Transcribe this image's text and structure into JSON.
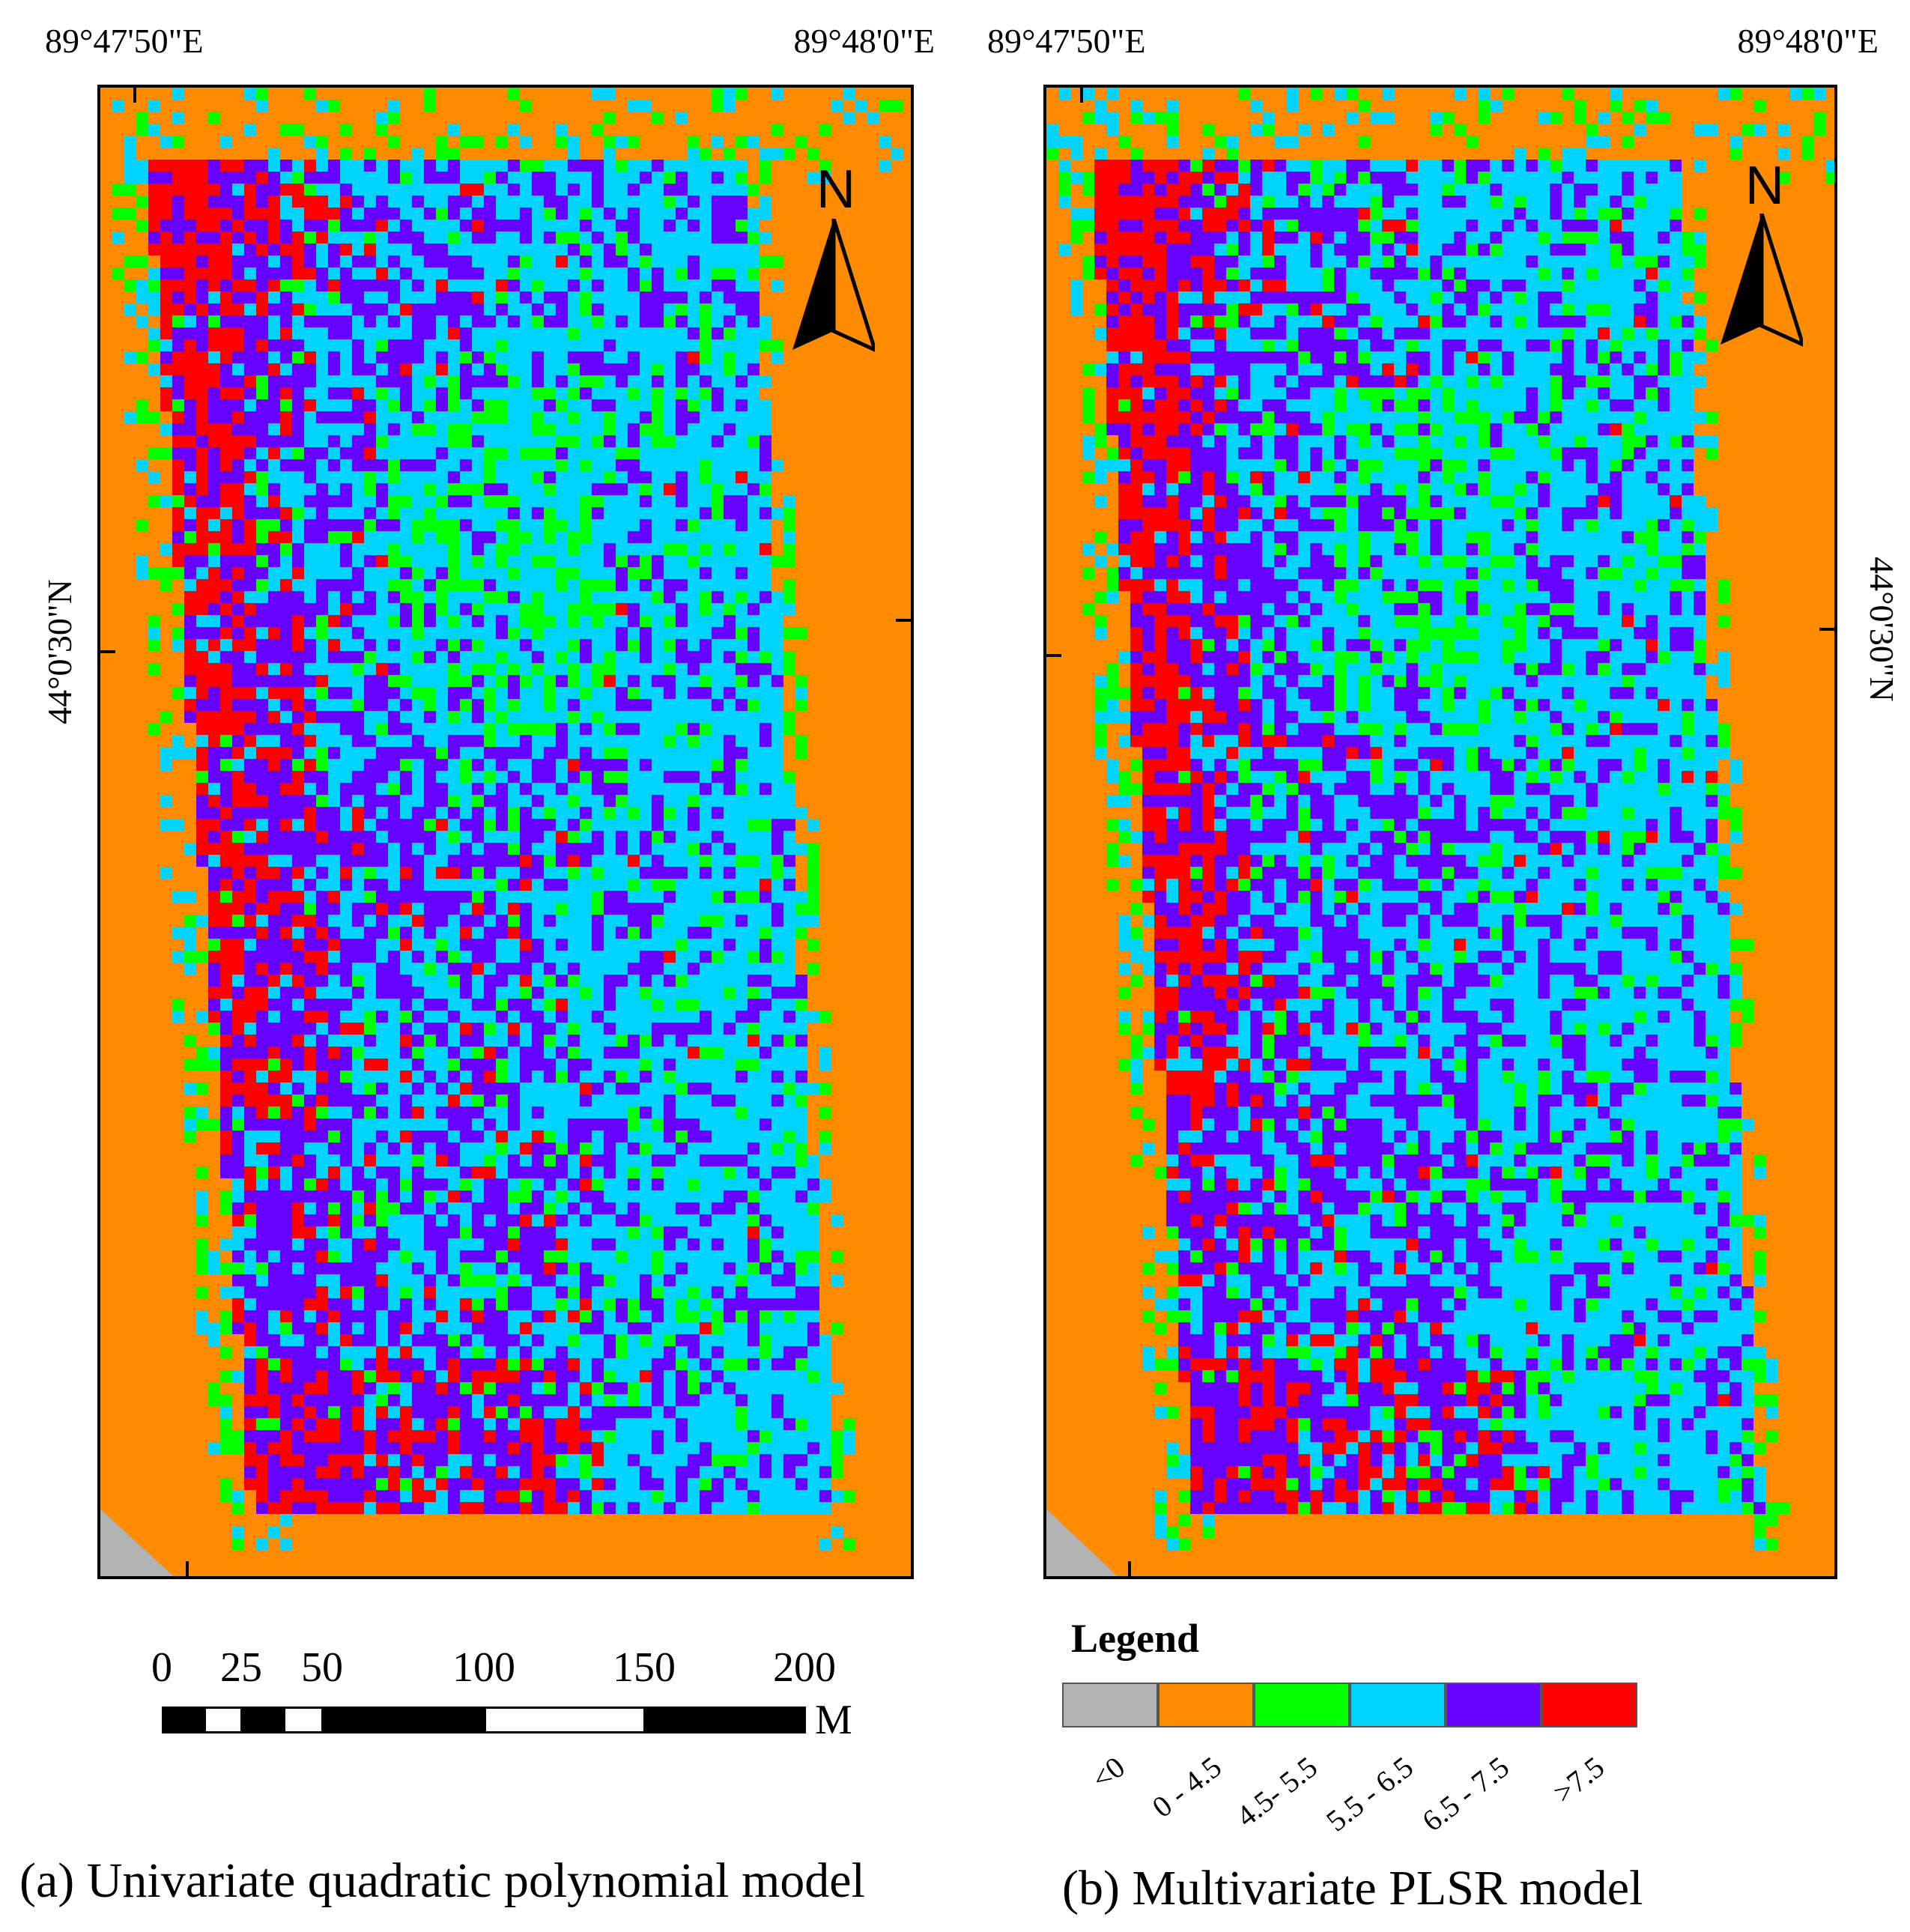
{
  "panels": [
    {
      "id": "a",
      "lon_left": "89°47'50\"E",
      "lon_right": "89°48'0\"E",
      "lat_label": "44°0'30\"N",
      "north_label": "N",
      "caption": "(a) Univariate quadratic polynomial model"
    },
    {
      "id": "b",
      "lon_left": "89°47'50\"E",
      "lon_right": "89°48'0\"E",
      "lat_label": "44°0'30\"N",
      "north_label": "N",
      "caption": "(b) Multivariate PLSR model"
    }
  ],
  "scale_bar": {
    "ticks": [
      "0",
      "25",
      "50",
      "100",
      "150",
      "200"
    ],
    "unit": "M"
  },
  "legend": {
    "title": "Legend",
    "classes": [
      {
        "label": "<0",
        "color": "#b3b3b3"
      },
      {
        "label": "0 - 4.5",
        "color": "#ff8c00"
      },
      {
        "label": "4.5- 5.5",
        "color": "#00ff00"
      },
      {
        "label": "5.5 - 6.5",
        "color": "#00d4ff"
      },
      {
        "label": "6.5 - 7.5",
        "color": "#6600ff"
      },
      {
        "label": ">7.5",
        "color": "#ff0000"
      }
    ]
  }
}
